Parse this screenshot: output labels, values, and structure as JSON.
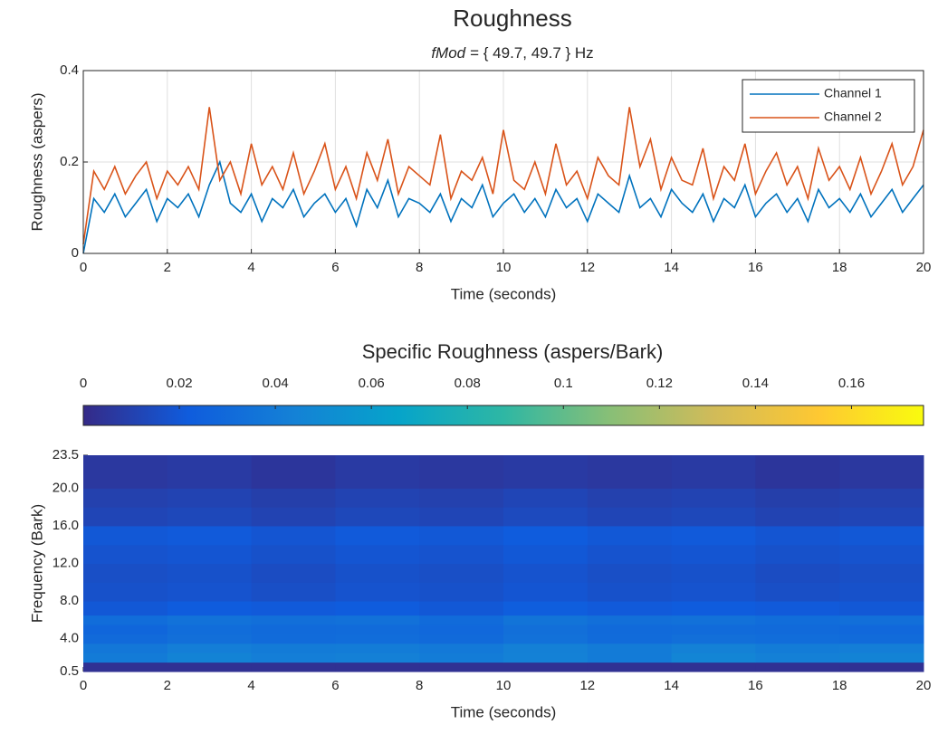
{
  "chart_data": [
    {
      "type": "line",
      "title": "Roughness",
      "subtitle_italic": "fMod",
      "subtitle": "= { 49.7, 49.7 } Hz",
      "x_label": "Time (seconds)",
      "y_label": "Roughness (aspers)",
      "x": [
        0,
        0.25,
        0.5,
        0.75,
        1,
        1.25,
        1.5,
        1.75,
        2,
        2.25,
        2.5,
        2.75,
        3,
        3.25,
        3.5,
        3.75,
        4,
        4.25,
        4.5,
        4.75,
        5,
        5.25,
        5.5,
        5.75,
        6,
        6.25,
        6.5,
        6.75,
        7,
        7.25,
        7.5,
        7.75,
        8,
        8.25,
        8.5,
        8.75,
        9,
        9.25,
        9.5,
        9.75,
        10,
        10.25,
        10.5,
        10.75,
        11,
        11.25,
        11.5,
        11.75,
        12,
        12.25,
        12.5,
        12.75,
        13,
        13.25,
        13.5,
        13.75,
        14,
        14.25,
        14.5,
        14.75,
        15,
        15.25,
        15.5,
        15.75,
        16,
        16.25,
        16.5,
        16.75,
        17,
        17.25,
        17.5,
        17.75,
        18,
        18.25,
        18.5,
        18.75,
        19,
        19.25,
        19.5,
        19.75,
        20
      ],
      "series": [
        {
          "name": "Channel 1",
          "color": "#0072bd",
          "values": [
            0,
            0.12,
            0.09,
            0.13,
            0.08,
            0.11,
            0.14,
            0.07,
            0.12,
            0.1,
            0.13,
            0.08,
            0.15,
            0.2,
            0.11,
            0.09,
            0.13,
            0.07,
            0.12,
            0.1,
            0.14,
            0.08,
            0.11,
            0.13,
            0.09,
            0.12,
            0.06,
            0.14,
            0.1,
            0.16,
            0.08,
            0.12,
            0.11,
            0.09,
            0.13,
            0.07,
            0.12,
            0.1,
            0.15,
            0.08,
            0.11,
            0.13,
            0.09,
            0.12,
            0.08,
            0.14,
            0.1,
            0.12,
            0.07,
            0.13,
            0.11,
            0.09,
            0.17,
            0.1,
            0.12,
            0.08,
            0.14,
            0.11,
            0.09,
            0.13,
            0.07,
            0.12,
            0.1,
            0.15,
            0.08,
            0.11,
            0.13,
            0.09,
            0.12,
            0.07,
            0.14,
            0.1,
            0.12,
            0.09,
            0.13,
            0.08,
            0.11,
            0.14,
            0.09,
            0.12,
            0.15
          ]
        },
        {
          "name": "Channel 2",
          "color": "#d95319",
          "values": [
            0.02,
            0.18,
            0.14,
            0.19,
            0.13,
            0.17,
            0.2,
            0.12,
            0.18,
            0.15,
            0.19,
            0.14,
            0.32,
            0.16,
            0.2,
            0.13,
            0.24,
            0.15,
            0.19,
            0.14,
            0.22,
            0.13,
            0.18,
            0.24,
            0.14,
            0.19,
            0.12,
            0.22,
            0.16,
            0.25,
            0.13,
            0.19,
            0.17,
            0.15,
            0.26,
            0.12,
            0.18,
            0.16,
            0.21,
            0.13,
            0.27,
            0.16,
            0.14,
            0.2,
            0.13,
            0.24,
            0.15,
            0.18,
            0.12,
            0.21,
            0.17,
            0.15,
            0.32,
            0.19,
            0.25,
            0.14,
            0.21,
            0.16,
            0.15,
            0.23,
            0.12,
            0.19,
            0.16,
            0.24,
            0.13,
            0.18,
            0.22,
            0.15,
            0.19,
            0.12,
            0.23,
            0.16,
            0.19,
            0.14,
            0.21,
            0.13,
            0.18,
            0.24,
            0.15,
            0.19,
            0.27
          ]
        }
      ],
      "xlim": [
        0,
        20
      ],
      "xticks": [
        0,
        2,
        4,
        6,
        8,
        10,
        12,
        14,
        16,
        18,
        20
      ],
      "ylim": [
        0,
        0.4
      ],
      "yticks": [
        0,
        0.2,
        0.4
      ],
      "grid": true,
      "legend": "northeast"
    },
    {
      "type": "heatmap",
      "colorbar_label": "Specific Roughness (aspers/Bark)",
      "x_label": "Time (seconds)",
      "y_label": "Frequency (Bark)",
      "x_edges": [
        0,
        2,
        4,
        6,
        8,
        10,
        12,
        14,
        16,
        18,
        20
      ],
      "y_edges": [
        0.5,
        1.5,
        2.5,
        3.5,
        4.5,
        5.5,
        6.5,
        8,
        10,
        12,
        14,
        16,
        18,
        20,
        23.5
      ],
      "values": [
        [
          0.003,
          0.003,
          0.003,
          0.003,
          0.003,
          0.003,
          0.003,
          0.003,
          0.003,
          0.003
        ],
        [
          0.04,
          0.045,
          0.042,
          0.043,
          0.041,
          0.044,
          0.04,
          0.046,
          0.043,
          0.045
        ],
        [
          0.038,
          0.042,
          0.04,
          0.041,
          0.039,
          0.043,
          0.04,
          0.044,
          0.041,
          0.042
        ],
        [
          0.03,
          0.033,
          0.031,
          0.032,
          0.03,
          0.034,
          0.031,
          0.033,
          0.032,
          0.031
        ],
        [
          0.028,
          0.032,
          0.03,
          0.031,
          0.029,
          0.033,
          0.03,
          0.031,
          0.03,
          0.029
        ],
        [
          0.032,
          0.035,
          0.033,
          0.034,
          0.031,
          0.036,
          0.033,
          0.034,
          0.032,
          0.033
        ],
        [
          0.02,
          0.022,
          0.021,
          0.022,
          0.02,
          0.023,
          0.021,
          0.022,
          0.021,
          0.02
        ],
        [
          0.017,
          0.018,
          0.016,
          0.018,
          0.017,
          0.019,
          0.017,
          0.018,
          0.016,
          0.017
        ],
        [
          0.016,
          0.017,
          0.015,
          0.017,
          0.016,
          0.018,
          0.016,
          0.017,
          0.015,
          0.016
        ],
        [
          0.018,
          0.019,
          0.017,
          0.019,
          0.018,
          0.02,
          0.018,
          0.019,
          0.017,
          0.018
        ],
        [
          0.02,
          0.021,
          0.019,
          0.021,
          0.02,
          0.022,
          0.02,
          0.021,
          0.019,
          0.02
        ],
        [
          0.012,
          0.013,
          0.011,
          0.013,
          0.012,
          0.014,
          0.012,
          0.013,
          0.011,
          0.012
        ],
        [
          0.01,
          0.011,
          0.009,
          0.011,
          0.01,
          0.012,
          0.01,
          0.011,
          0.009,
          0.01
        ],
        [
          0.006,
          0.007,
          0.005,
          0.007,
          0.006,
          0.007,
          0.006,
          0.007,
          0.005,
          0.006
        ]
      ],
      "xlim": [
        0,
        20
      ],
      "xticks": [
        0,
        2,
        4,
        6,
        8,
        10,
        12,
        14,
        16,
        18,
        20
      ],
      "ylim": [
        0.5,
        23.5
      ],
      "yticks": [
        0.5,
        {
          "value": 4,
          "label": "4.0"
        },
        {
          "value": 8,
          "label": "8.0"
        },
        {
          "value": 12,
          "label": "12.0"
        },
        {
          "value": 16,
          "label": "16.0"
        },
        {
          "value": 20,
          "label": "20.0"
        },
        23.5
      ],
      "clim": [
        0,
        0.175
      ],
      "cticks": [
        0,
        0.02,
        0.04,
        0.06,
        0.08,
        0.1,
        0.12,
        0.14,
        0.16
      ],
      "colormap": [
        "#352a87",
        "#0f5cdd",
        "#1481d6",
        "#06a4ca",
        "#2eb7a4",
        "#87bf77",
        "#d1bb59",
        "#fec832",
        "#f9fb0e"
      ]
    }
  ]
}
